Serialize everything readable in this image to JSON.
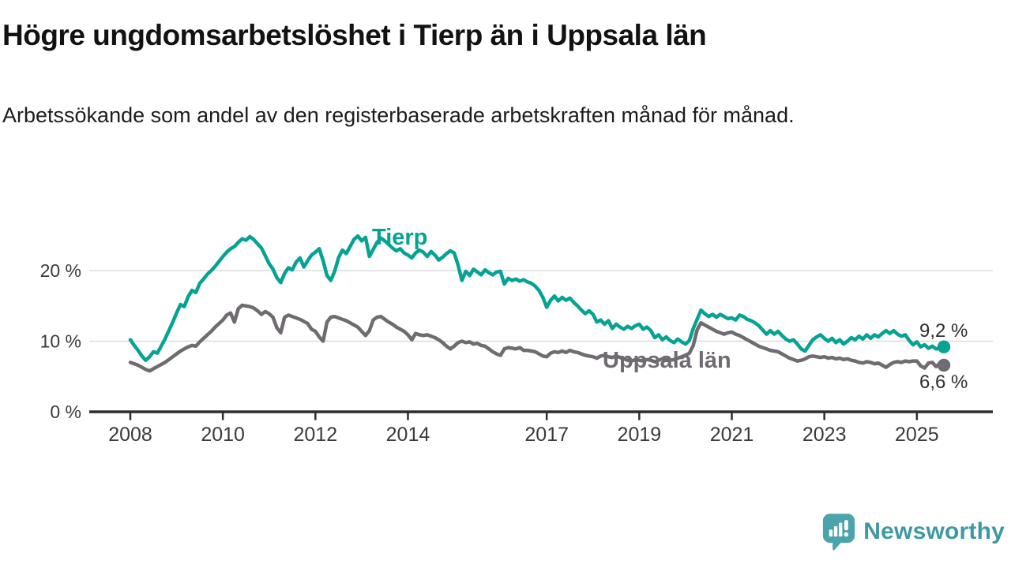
{
  "header": {
    "title": "Högre ungdomsarbetslöshet i Tierp än i Uppsala län",
    "subtitle": "Arbetssökande som andel av den registerbaserade arbetskraften månad för månad."
  },
  "chart_data": {
    "type": "line",
    "x_unit": "month",
    "x_start": "2008-01",
    "x_end": "2025-08",
    "grid": "horizontal",
    "legend": "direct-labels",
    "ylim": [
      0,
      26.5
    ],
    "y_ticks": [
      {
        "value": 0,
        "label": "0 %"
      },
      {
        "value": 10,
        "label": "10 %"
      },
      {
        "value": 20,
        "label": "20 %"
      }
    ],
    "x_ticks": [
      {
        "year": 2008,
        "label": "2008"
      },
      {
        "year": 2010,
        "label": "2010"
      },
      {
        "year": 2012,
        "label": "2012"
      },
      {
        "year": 2014,
        "label": "2014"
      },
      {
        "year": 2017,
        "label": "2017"
      },
      {
        "year": 2019,
        "label": "2019"
      },
      {
        "year": 2021,
        "label": "2021"
      },
      {
        "year": 2023,
        "label": "2023"
      },
      {
        "year": 2025,
        "label": "2025"
      }
    ],
    "series": [
      {
        "name": "Tierp",
        "color": "#06A294",
        "end_label": "9,2 %",
        "end_value": 9.2,
        "values": [
          10.2,
          9.4,
          8.7,
          7.9,
          7.3,
          7.8,
          8.5,
          8.3,
          9.3,
          10.3,
          11.5,
          12.7,
          14.0,
          15.2,
          14.9,
          16.3,
          17.2,
          16.9,
          18.2,
          18.8,
          19.5,
          20.0,
          20.6,
          21.3,
          22.0,
          22.6,
          23.1,
          23.4,
          24.0,
          24.5,
          24.3,
          24.8,
          24.4,
          23.8,
          23.2,
          22.1,
          21.0,
          20.2,
          19.0,
          18.3,
          19.6,
          20.4,
          20.1,
          21.2,
          21.8,
          20.5,
          21.4,
          22.2,
          22.6,
          23.1,
          21.4,
          19.3,
          18.6,
          19.9,
          21.8,
          22.9,
          22.4,
          23.4,
          24.4,
          24.9,
          24.2,
          24.7,
          22.0,
          23.0,
          24.0,
          24.6,
          24.2,
          23.7,
          23.2,
          22.8,
          23.1,
          22.5,
          22.2,
          21.8,
          22.5,
          22.9,
          22.6,
          22.0,
          22.7,
          22.2,
          21.5,
          21.9,
          22.4,
          22.8,
          22.5,
          20.8,
          18.6,
          19.9,
          19.3,
          20.2,
          19.8,
          19.4,
          20.1,
          19.7,
          19.4,
          19.8,
          19.9,
          18.1,
          18.9,
          18.6,
          18.8,
          18.5,
          18.7,
          18.4,
          18.2,
          17.8,
          17.2,
          16.2,
          14.8,
          15.8,
          16.4,
          15.7,
          16.2,
          15.8,
          16.1,
          15.5,
          15.0,
          14.4,
          13.9,
          14.3,
          13.8,
          12.7,
          13.0,
          12.4,
          12.9,
          11.8,
          12.4,
          12.0,
          11.7,
          12.1,
          11.8,
          12.2,
          12.4,
          11.7,
          12.0,
          11.5,
          10.5,
          10.9,
          10.2,
          10.6,
          10.1,
          9.8,
          10.3,
          9.9,
          9.6,
          10.1,
          11.8,
          13.1,
          14.4,
          13.9,
          13.5,
          13.8,
          13.4,
          13.8,
          13.5,
          13.2,
          13.3,
          13.0,
          13.7,
          13.5,
          13.1,
          12.9,
          12.6,
          12.2,
          11.6,
          11.0,
          11.5,
          11.0,
          11.4,
          10.8,
          10.3,
          10.0,
          10.2,
          9.6,
          8.9,
          8.6,
          9.4,
          10.2,
          10.6,
          10.9,
          10.4,
          10.0,
          10.4,
          9.8,
          10.2,
          9.6,
          10.0,
          10.5,
          10.2,
          10.7,
          10.3,
          10.9,
          10.4,
          10.9,
          10.6,
          11.1,
          11.5,
          11.1,
          11.5,
          11.0,
          10.7,
          10.9,
          10.1,
          9.5,
          9.9,
          9.2,
          9.5,
          9.0,
          9.3,
          8.9,
          9.0,
          9.2
        ]
      },
      {
        "name": "Uppsala län",
        "color": "#6F6B70",
        "end_label": "6,6 %",
        "end_value": 6.6,
        "values": [
          7.0,
          6.8,
          6.6,
          6.3,
          6.0,
          5.8,
          6.1,
          6.4,
          6.7,
          7.0,
          7.4,
          7.8,
          8.2,
          8.6,
          8.9,
          9.2,
          9.4,
          9.3,
          9.9,
          10.4,
          10.9,
          11.4,
          12.0,
          12.5,
          13.0,
          13.7,
          14.0,
          12.7,
          14.6,
          15.1,
          15.0,
          14.9,
          14.7,
          14.3,
          13.8,
          14.2,
          13.9,
          13.4,
          11.9,
          11.2,
          13.4,
          13.7,
          13.5,
          13.3,
          13.1,
          12.8,
          12.5,
          11.7,
          11.4,
          10.6,
          10.0,
          12.7,
          13.4,
          13.5,
          13.3,
          13.1,
          12.9,
          12.6,
          12.3,
          12.0,
          11.4,
          10.8,
          11.5,
          13.0,
          13.4,
          13.5,
          13.1,
          12.7,
          12.4,
          12.0,
          11.7,
          11.4,
          10.9,
          10.2,
          11.1,
          10.9,
          10.8,
          10.9,
          10.7,
          10.5,
          10.2,
          9.8,
          9.3,
          8.9,
          9.3,
          9.8,
          10.0,
          9.8,
          9.9,
          9.6,
          9.7,
          9.4,
          9.3,
          8.9,
          8.5,
          8.2,
          8.0,
          8.9,
          9.1,
          9.0,
          8.9,
          9.1,
          8.7,
          8.7,
          8.6,
          8.5,
          8.2,
          7.9,
          7.8,
          8.3,
          8.5,
          8.4,
          8.6,
          8.4,
          8.7,
          8.5,
          8.4,
          8.2,
          8.0,
          7.9,
          7.8,
          7.6,
          7.9,
          8.0,
          7.8,
          7.7,
          7.9,
          7.7,
          7.5,
          7.3,
          7.2,
          7.4,
          7.3,
          7.2,
          7.4,
          7.3,
          7.1,
          7.3,
          7.5,
          7.4,
          7.3,
          7.4,
          7.6,
          7.8,
          8.0,
          8.3,
          9.4,
          11.6,
          12.6,
          12.3,
          12.0,
          11.7,
          11.4,
          11.2,
          11.0,
          11.2,
          11.3,
          11.0,
          10.8,
          10.5,
          10.2,
          9.9,
          9.6,
          9.3,
          9.1,
          8.9,
          8.7,
          8.6,
          8.5,
          8.2,
          7.9,
          7.6,
          7.4,
          7.2,
          7.3,
          7.5,
          7.8,
          7.9,
          7.8,
          7.7,
          7.8,
          7.6,
          7.7,
          7.5,
          7.6,
          7.4,
          7.5,
          7.3,
          7.2,
          7.0,
          6.9,
          7.1,
          7.0,
          6.8,
          6.9,
          6.6,
          6.3,
          6.7,
          7.0,
          7.1,
          7.0,
          7.2,
          7.1,
          7.2,
          7.2,
          6.5,
          6.2,
          6.9,
          7.0,
          6.4,
          6.9,
          6.6
        ]
      }
    ],
    "style": {
      "grid_color": "#DCDCDC",
      "axis_color": "#2D2D2D",
      "tick_text_color": "#3A3A3A",
      "line_width": 4.5
    }
  },
  "footer": {
    "brand": "Newsworthy",
    "logo_icon": "newsworthy-speech-bubble-chart-icon",
    "brand_color": "#3E99A1",
    "icon_color": "#4BA3AB"
  }
}
